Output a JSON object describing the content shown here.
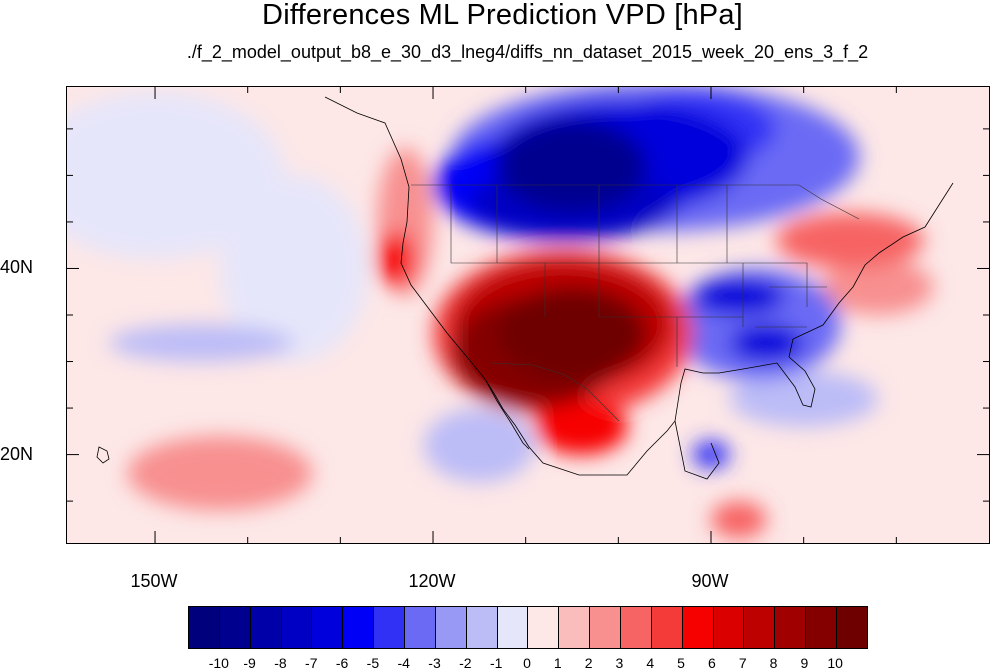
{
  "title": "Differences ML Prediction VPD [hPa]",
  "subtitle": "./f_2_model_output_b8_e_30_d3_lneg4/diffs_nn_dataset_2015_week_20_ens_3_f_2",
  "map": {
    "projection": "cylindrical-equidistant",
    "lon_range": [
      -159.5,
      -60
    ],
    "lat_range": [
      10.5,
      59.5
    ],
    "lat_labels": [
      {
        "lat": 40,
        "text": "40N"
      },
      {
        "lat": 20,
        "text": "20N"
      }
    ],
    "lon_labels": [
      {
        "lon": -150,
        "text": "150W"
      },
      {
        "lon": -120,
        "text": "120W"
      },
      {
        "lon": -90,
        "text": "90W"
      }
    ],
    "major_lat_ticks": [
      20,
      40
    ],
    "minor_lat_ticks": [
      15,
      25,
      30,
      35,
      45,
      50,
      55
    ],
    "major_lon_ticks": [
      -150,
      -120,
      -90
    ],
    "minor_lon_ticks": [
      -140,
      -130,
      -110,
      -100,
      -80,
      -70
    ]
  },
  "chart_data": {
    "type": "heatmap",
    "variable": "VPD difference",
    "units": "hPa",
    "title": "Differences ML Prediction VPD [hPa]",
    "subtitle": "./f_2_model_output_b8_e_30_d3_lneg4/diffs_nn_dataset_2015_week_20_ens_3_f_2",
    "background_level": 0.5,
    "regions": [
      {
        "lon": -105,
        "lat": 51,
        "rx": 8,
        "ry": 5,
        "value": -10
      },
      {
        "lon": -100,
        "lat": 52,
        "rx": 14,
        "ry": 6,
        "value": -7
      },
      {
        "lon": -96,
        "lat": 52,
        "rx": 22,
        "ry": 8,
        "value": -4
      },
      {
        "lon": -105,
        "lat": 47,
        "rx": 11,
        "ry": 4,
        "value": -8
      },
      {
        "lon": -106,
        "lat": 49,
        "rx": 14,
        "ry": 6,
        "value": -6
      },
      {
        "lon": -92,
        "lat": 55,
        "rx": 9,
        "ry": 4,
        "value": -5
      },
      {
        "lon": -87,
        "lat": 37,
        "rx": 5,
        "ry": 2,
        "value": -7
      },
      {
        "lon": -84,
        "lat": 32,
        "rx": 4,
        "ry": 2,
        "value": -7
      },
      {
        "lon": -85,
        "lat": 34,
        "rx": 9,
        "ry": 6,
        "value": -4
      },
      {
        "lon": -90,
        "lat": 20,
        "rx": 2,
        "ry": 1.5,
        "value": -5
      },
      {
        "lon": -80,
        "lat": 26,
        "rx": 8,
        "ry": 3,
        "value": -2
      },
      {
        "lon": -145,
        "lat": 32,
        "rx": 10,
        "ry": 2,
        "value": -2
      },
      {
        "lon": -115,
        "lat": 21,
        "rx": 6,
        "ry": 4,
        "value": -2
      },
      {
        "lon": -105,
        "lat": 33,
        "rx": 8,
        "ry": 5,
        "value": 10
      },
      {
        "lon": -109,
        "lat": 31,
        "rx": 9,
        "ry": 6,
        "value": 9
      },
      {
        "lon": -106,
        "lat": 34,
        "rx": 12,
        "ry": 7,
        "value": 7
      },
      {
        "lon": -106,
        "lat": 33,
        "rx": 14,
        "ry": 9,
        "value": 4
      },
      {
        "lon": -104,
        "lat": 23,
        "rx": 5,
        "ry": 3,
        "value": 5
      },
      {
        "lon": -124,
        "lat": 41,
        "rx": 2,
        "ry": 3,
        "value": 5
      },
      {
        "lon": -123,
        "lat": 45,
        "rx": 3,
        "ry": 8,
        "value": 2
      },
      {
        "lon": -143,
        "lat": 18,
        "rx": 10,
        "ry": 4,
        "value": 2
      },
      {
        "lon": -72,
        "lat": 38,
        "rx": 6,
        "ry": 3,
        "value": 2
      },
      {
        "lon": -75,
        "lat": 43,
        "rx": 8,
        "ry": 3,
        "value": 3
      },
      {
        "lon": -87,
        "lat": 13,
        "rx": 3,
        "ry": 2,
        "value": 3
      },
      {
        "lon": -150,
        "lat": 50,
        "rx": 14,
        "ry": 9,
        "value": -0.5
      },
      {
        "lon": -135,
        "lat": 40,
        "rx": 8,
        "ry": 10,
        "value": -0.5
      }
    ],
    "colorbar": {
      "levels": [
        -10,
        -9,
        -8,
        -7,
        -6,
        -5,
        -4,
        -3,
        -2,
        -1,
        0,
        1,
        2,
        3,
        4,
        5,
        6,
        7,
        8,
        9,
        10
      ],
      "labels": [
        "-10",
        "-9",
        "-8",
        "-7",
        "-6",
        "-5",
        "-4",
        "-3",
        "-2",
        "-1",
        "0",
        "1",
        "2",
        "3",
        "4",
        "5",
        "6",
        "7",
        "8",
        "9",
        "10"
      ],
      "colors": [
        "#00007d",
        "#00008f",
        "#0000a8",
        "#0000c4",
        "#0000dc",
        "#0000f7",
        "#3131f5",
        "#6a6af5",
        "#9898f5",
        "#bcbcf7",
        "#e6e6fa",
        "#fde7e7",
        "#fbbcbc",
        "#f89090",
        "#f76464",
        "#f53a3a",
        "#f70000",
        "#db0000",
        "#bd0000",
        "#a00000",
        "#840000",
        "#6e0000"
      ]
    }
  }
}
